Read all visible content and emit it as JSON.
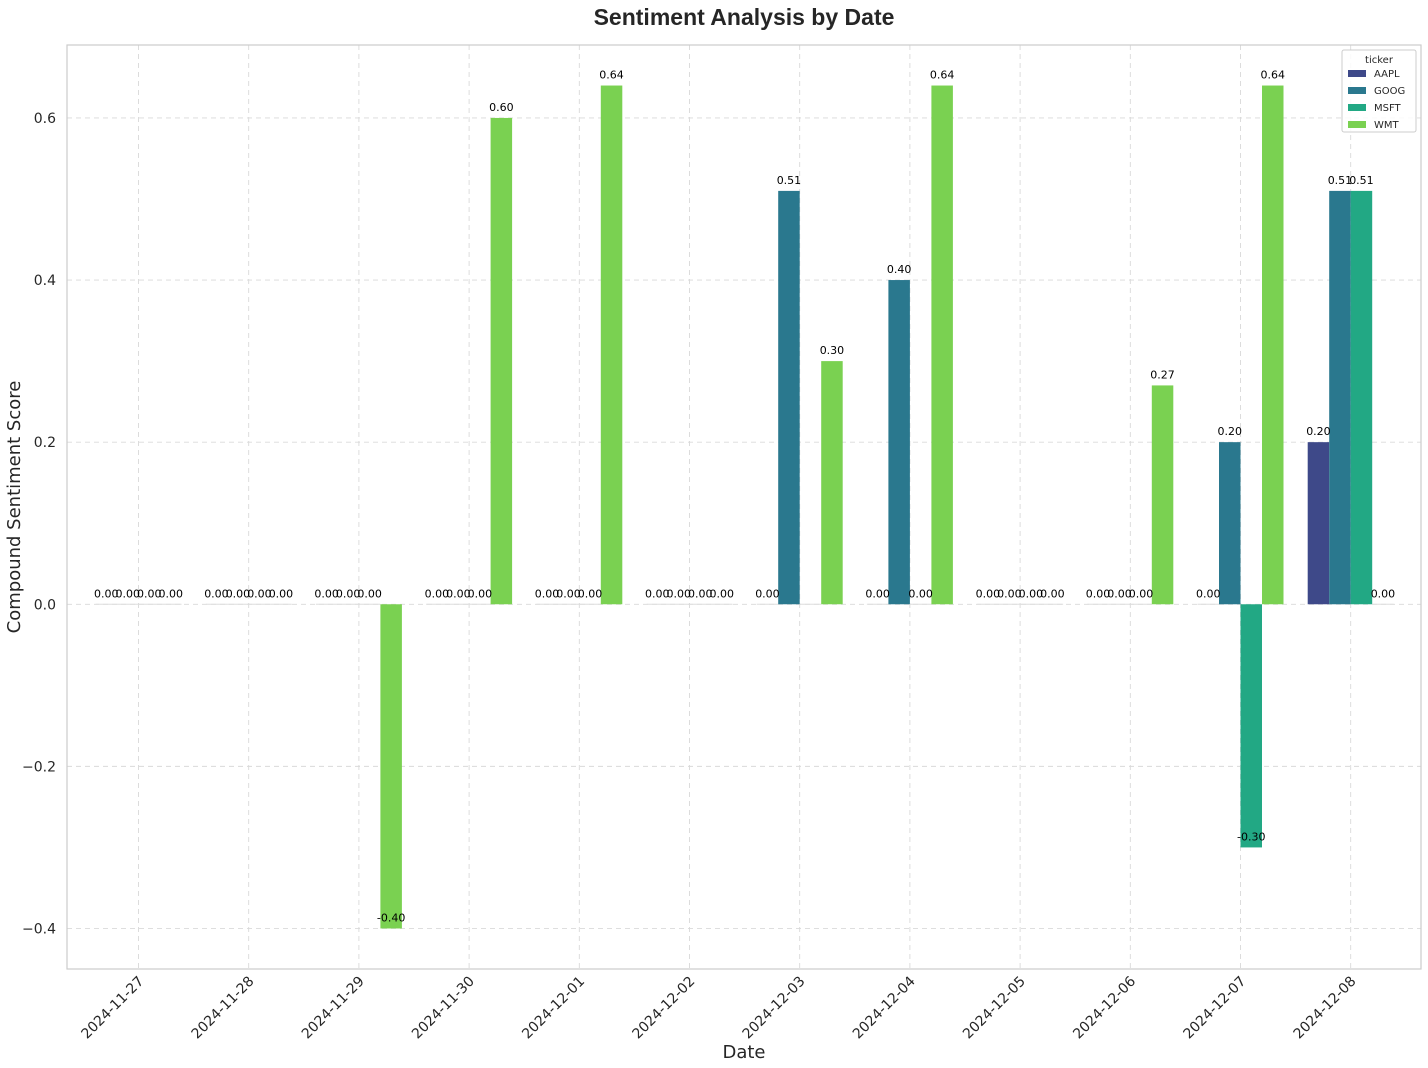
{
  "chart_data": {
    "type": "bar",
    "title": "Sentiment Analysis by Date",
    "xlabel": "Date",
    "ylabel": "Compound Sentiment Score",
    "ylim": [
      -0.45,
      0.69
    ],
    "yticks": [
      -0.4,
      -0.2,
      0.0,
      0.2,
      0.4,
      0.6
    ],
    "ytick_labels": [
      "−0.4",
      "−0.2",
      "0.0",
      "0.2",
      "0.4",
      "0.6"
    ],
    "grid": true,
    "legend": {
      "title": "ticker",
      "placement": "top-right"
    },
    "categories": [
      "2024-11-27",
      "2024-11-28",
      "2024-11-29",
      "2024-11-30",
      "2024-12-01",
      "2024-12-02",
      "2024-12-03",
      "2024-12-04",
      "2024-12-05",
      "2024-12-06",
      "2024-12-07",
      "2024-12-08"
    ],
    "series": [
      {
        "name": "AAPL",
        "color": "#3e4989",
        "values": [
          0.0,
          0.0,
          0.0,
          0.0,
          0.0,
          0.0,
          0.0,
          0.0,
          0.0,
          0.0,
          0.0,
          0.2
        ]
      },
      {
        "name": "GOOG",
        "color": "#2a788e",
        "values": [
          0.0,
          0.0,
          0.0,
          0.0,
          0.0,
          0.0,
          0.51,
          0.4,
          0.0,
          0.0,
          0.2,
          0.51
        ]
      },
      {
        "name": "MSFT",
        "color": "#22a884",
        "values": [
          0.0,
          0.0,
          0.0,
          0.0,
          0.0,
          0.0,
          0.0,
          0.0,
          0.0,
          0.0,
          -0.3,
          0.51
        ]
      },
      {
        "name": "WMT",
        "color": "#7ad151",
        "values": [
          0.0,
          0.0,
          -0.4,
          0.6,
          0.64,
          0.0,
          0.3,
          0.64,
          0.0,
          0.27,
          0.64,
          0.0
        ]
      }
    ],
    "bar_labels": [
      [
        "0.00",
        "0.00",
        "0.00",
        "0.00",
        "0.00",
        "0.00",
        "0.00",
        "0.00",
        "0.00",
        "0.00",
        "0.00",
        "0.20"
      ],
      [
        "0.00",
        "0.00",
        "0.00",
        "0.00",
        "0.00",
        "0.00",
        "0.51",
        "0.40",
        "0.00",
        "0.00",
        "0.20",
        "0.51"
      ],
      [
        "0.00",
        "0.00",
        "0.00",
        "0.00",
        "0.00",
        "0.00",
        "",
        "0.00",
        "0.00",
        "0.00",
        "-0.30",
        "0.51"
      ],
      [
        "0.00",
        "0.00",
        "-0.40",
        "0.60",
        "0.64",
        "0.00",
        "0.30",
        "0.64",
        "0.00",
        "0.27",
        "0.64",
        "0.00"
      ]
    ]
  }
}
